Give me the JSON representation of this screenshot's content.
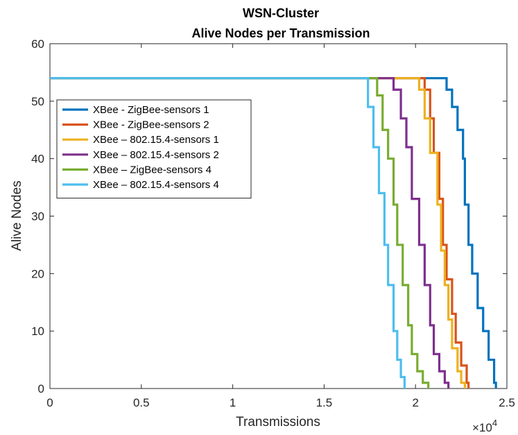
{
  "chart_data": {
    "type": "line",
    "title": "WSN-Cluster",
    "subtitle": "Alive Nodes per Transmission",
    "xlabel": "Transmissions",
    "ylabel": "Alive Nodes",
    "x_exponent_label": "×10",
    "x_exponent_power": "4",
    "xlim": [
      0,
      25000
    ],
    "ylim": [
      0,
      60
    ],
    "xticks": [
      0,
      5000,
      10000,
      15000,
      20000,
      25000
    ],
    "xtick_labels": [
      "0",
      "0.5",
      "1",
      "1.5",
      "2",
      "2.5"
    ],
    "yticks": [
      0,
      10,
      20,
      30,
      40,
      50,
      60
    ],
    "ytick_labels": [
      "0",
      "10",
      "20",
      "30",
      "40",
      "50",
      "60"
    ],
    "grid": false,
    "legend_position": "top-left",
    "series": [
      {
        "name": "XBee - ZigBee-sensors 1",
        "color": "#0072BD",
        "x": [
          0,
          21500,
          21700,
          22000,
          22300,
          22600,
          22700,
          22900,
          23100,
          23400,
          23700,
          24000,
          24300,
          24400
        ],
        "y": [
          54,
          54,
          52,
          49,
          45,
          40,
          32,
          25,
          20,
          14,
          10,
          5,
          1,
          0
        ]
      },
      {
        "name": "XBee - ZigBee-sensors 2",
        "color": "#D95319",
        "x": [
          0,
          20300,
          20500,
          20800,
          21000,
          21300,
          21500,
          21700,
          22000,
          22200,
          22500,
          22800,
          22900
        ],
        "y": [
          54,
          54,
          52,
          47,
          41,
          33,
          25,
          19,
          13,
          8,
          4,
          1,
          0
        ]
      },
      {
        "name": "XBee – 802.15.4-sensors 1",
        "color": "#EDB120",
        "x": [
          0,
          20000,
          20200,
          20500,
          20800,
          21200,
          21400,
          21600,
          21800,
          22000,
          22300,
          22500,
          22700
        ],
        "y": [
          54,
          54,
          52,
          47,
          41,
          32,
          24,
          18,
          12,
          7,
          3,
          1,
          0
        ]
      },
      {
        "name": "XBee – 802.15.4-sensors 2",
        "color": "#7E2F8E",
        "x": [
          0,
          18500,
          18800,
          19200,
          19500,
          19800,
          20200,
          20500,
          20800,
          21000,
          21300,
          21600,
          21800
        ],
        "y": [
          54,
          54,
          52,
          47,
          42,
          33,
          25,
          18,
          11,
          6,
          3,
          1,
          0
        ]
      },
      {
        "name": "XBee – ZigBee-sensors 4",
        "color": "#77AC30",
        "x": [
          0,
          17600,
          17900,
          18200,
          18500,
          18800,
          19000,
          19300,
          19600,
          19800,
          20100,
          20400,
          20700
        ],
        "y": [
          54,
          54,
          51,
          45,
          40,
          32,
          25,
          18,
          11,
          6,
          3,
          1,
          0
        ]
      },
      {
        "name": "XBee – 802.15.4-sensors 4",
        "color": "#4DBEEE",
        "x": [
          0,
          17100,
          17400,
          17700,
          18000,
          18300,
          18500,
          18800,
          19000,
          19200,
          19400
        ],
        "y": [
          54,
          54,
          49,
          42,
          34,
          25,
          18,
          10,
          5,
          2,
          0
        ]
      }
    ]
  }
}
